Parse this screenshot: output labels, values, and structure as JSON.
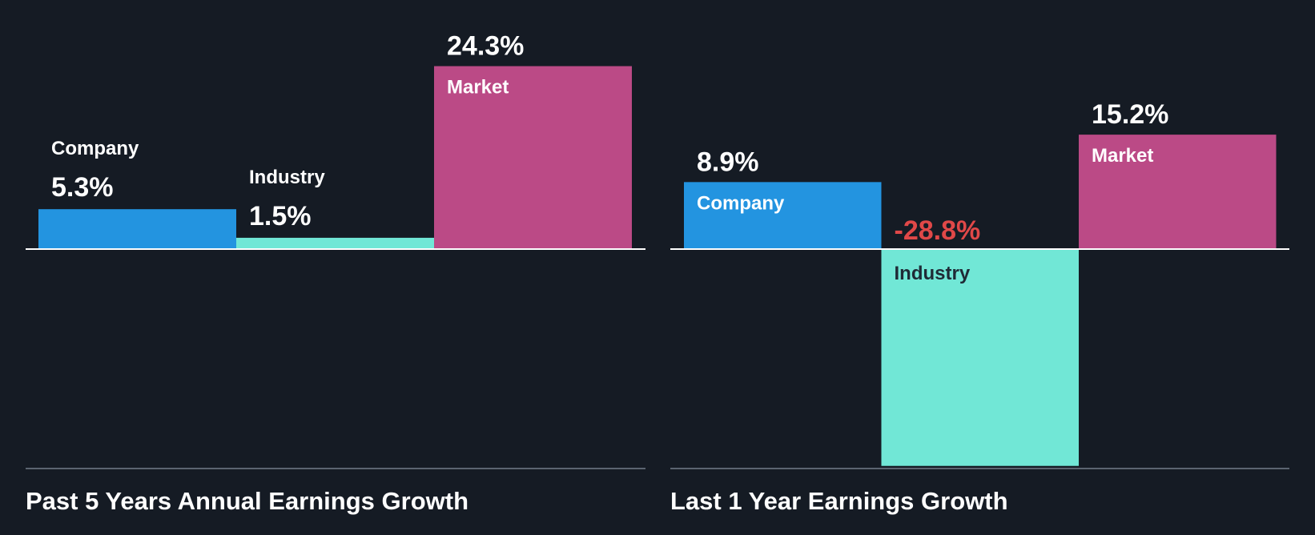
{
  "colors": {
    "background": "#151b24",
    "company": "#2394e0",
    "industry": "#71e7d6",
    "market": "#bb4a86",
    "positive_text": "#ffffff",
    "negative_text": "#e04848",
    "label_on_dark_bar": "#ffffff",
    "label_on_light_bar": "#1f2a36",
    "zero_line": "#ffffff",
    "base_line": "#5b6470"
  },
  "chart_data": [
    {
      "type": "bar",
      "title": "Past 5 Years Annual Earnings Growth",
      "categories": [
        "Company",
        "Industry",
        "Market"
      ],
      "values": [
        5.3,
        1.5,
        24.3
      ],
      "value_labels": [
        "5.3%",
        "1.5%",
        "24.3%"
      ],
      "unit": "%",
      "ylim": [
        -29.0,
        24.3
      ],
      "grid": false
    },
    {
      "type": "bar",
      "title": "Last 1 Year Earnings Growth",
      "categories": [
        "Company",
        "Industry",
        "Market"
      ],
      "values": [
        8.9,
        -28.8,
        15.2
      ],
      "value_labels": [
        "8.9%",
        "-28.8%",
        "15.2%"
      ],
      "unit": "%",
      "ylim": [
        -28.8,
        24.3
      ],
      "grid": false
    }
  ]
}
